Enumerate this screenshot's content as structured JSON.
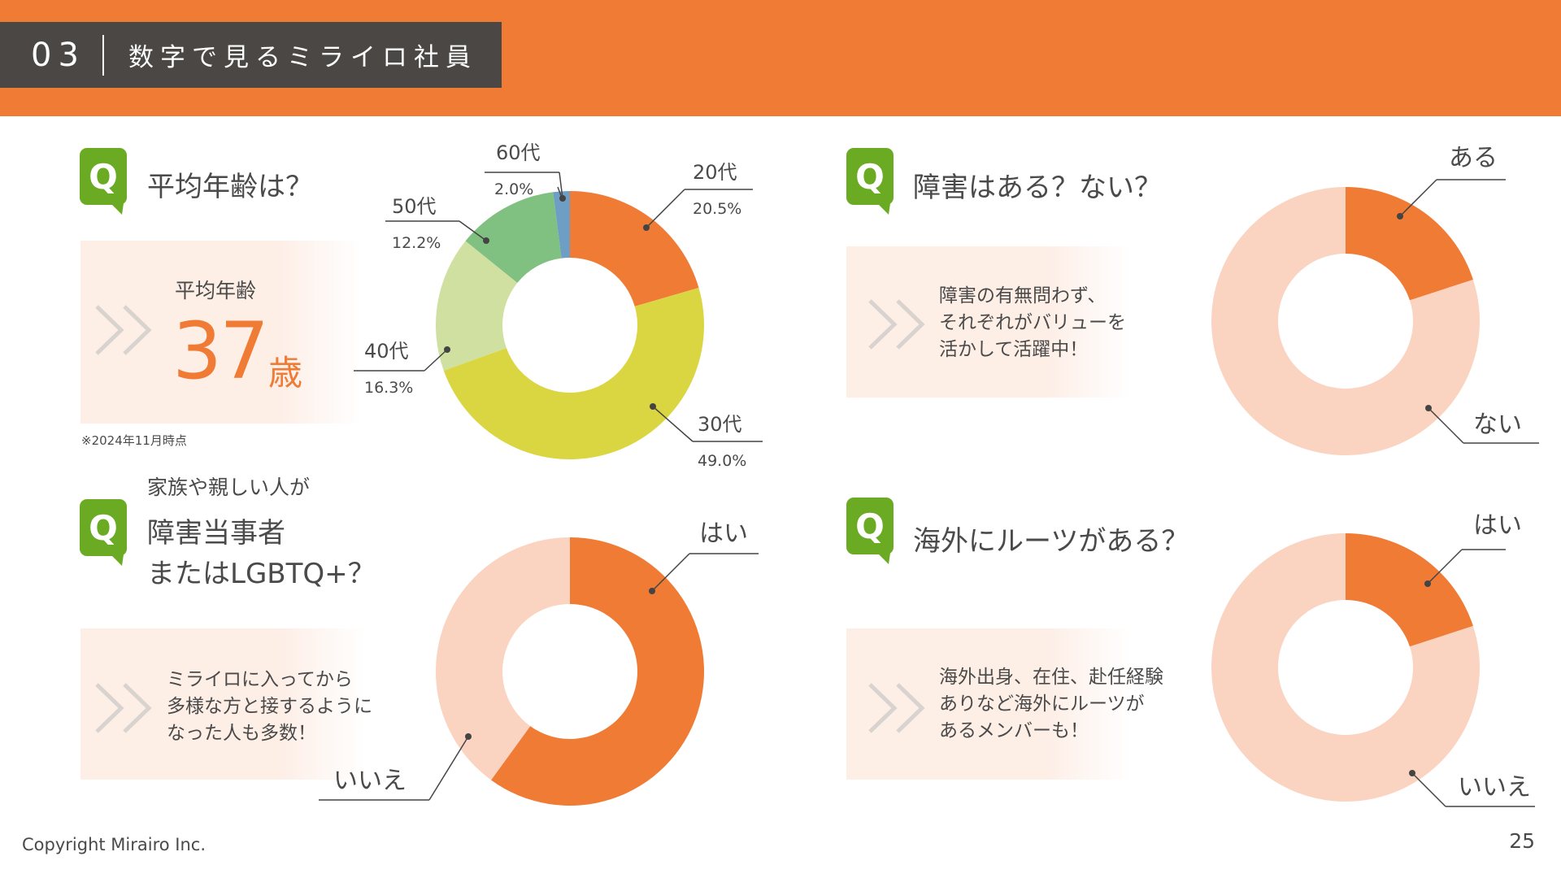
{
  "header": {
    "section_number": "03",
    "title": "数字で見るミライロ社員"
  },
  "q_icon_letter": "Q",
  "colors": {
    "accent": "#ef7b35",
    "light": "#fad4c0",
    "green": "#6aab23",
    "header_box": "#4b4744"
  },
  "quadrants": {
    "age": {
      "question": "平均年齢は？",
      "panel_label": "平均年齢",
      "average_value": "37",
      "average_unit": "歳",
      "note": "※2024年11月時点"
    },
    "disability": {
      "question": "障害はある？ない？",
      "panel_lines": [
        "障害の有無問わず、",
        "それぞれがバリューを",
        "活かして活躍中！"
      ]
    },
    "family": {
      "question_small": "家族や親しい人が",
      "question_lines": [
        "障害当事者",
        "またはLGBTQ+？"
      ],
      "panel_lines": [
        "ミライロに入ってから",
        "多様な方と接するように",
        "なった人も多数！"
      ]
    },
    "roots": {
      "question": "海外にルーツがある？",
      "panel_lines": [
        "海外出身、在住、赴任経験",
        "ありなど海外にルーツが",
        "あるメンバーも！"
      ]
    }
  },
  "chart_data": [
    {
      "type": "pie",
      "id": "age",
      "categories": [
        "20代",
        "30代",
        "40代",
        "50代",
        "60代"
      ],
      "values": [
        20.5,
        49.0,
        16.3,
        12.2,
        2.0
      ],
      "value_labels": [
        "20.5%",
        "49.0%",
        "16.3%",
        "12.2%",
        "2.0%"
      ],
      "colors": [
        "#ef7b35",
        "#dad642",
        "#cfe0a0",
        "#80c080",
        "#6f9ec4"
      ]
    },
    {
      "type": "pie",
      "id": "disability",
      "categories": [
        "ある",
        "ない"
      ],
      "values": [
        20,
        80
      ],
      "colors": [
        "#ef7b35",
        "#fad4c0"
      ]
    },
    {
      "type": "pie",
      "id": "family",
      "categories": [
        "はい",
        "いいえ"
      ],
      "values": [
        60,
        40
      ],
      "colors": [
        "#ef7b35",
        "#fad4c0"
      ]
    },
    {
      "type": "pie",
      "id": "roots",
      "categories": [
        "はい",
        "いいえ"
      ],
      "values": [
        20,
        80
      ],
      "colors": [
        "#ef7b35",
        "#fad4c0"
      ]
    }
  ],
  "footer": {
    "copyright": "Copyright Mirairo Inc.",
    "page_number": "25"
  }
}
